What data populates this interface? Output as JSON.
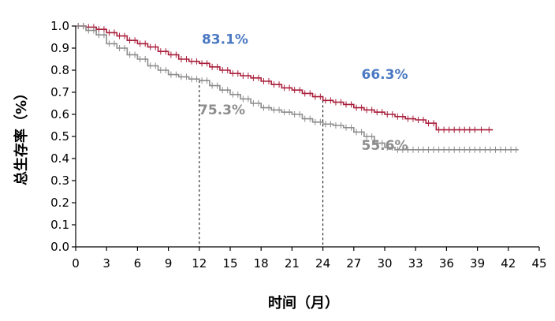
{
  "chart_data": {
    "type": "line",
    "xlabel": "时间（月）",
    "ylabel": "总生存率（%）",
    "xlim": [
      0,
      45
    ],
    "ylim": [
      0,
      1.0
    ],
    "x_ticks": [
      "0",
      "3",
      "6",
      "9",
      "12",
      "15",
      "18",
      "21",
      "24",
      "27",
      "30",
      "33",
      "36",
      "39",
      "42",
      "45"
    ],
    "y_ticks": [
      "0.0",
      "0.1",
      "0.2",
      "0.3",
      "0.4",
      "0.5",
      "0.6",
      "0.7",
      "0.8",
      "0.9",
      "1.0"
    ],
    "grid": false,
    "series": [
      {
        "color": "#a91e3b",
        "x": [
          0,
          1,
          2,
          3,
          4,
          5,
          6,
          7,
          8,
          9,
          10,
          11,
          12,
          13,
          14,
          15,
          16,
          17,
          18,
          19,
          20,
          21,
          22,
          23,
          24,
          25,
          26,
          27,
          28,
          29,
          30,
          31,
          32,
          33,
          34,
          35,
          36,
          37,
          38,
          39,
          40.5
        ],
        "y": [
          1.0,
          0.995,
          0.985,
          0.97,
          0.955,
          0.935,
          0.92,
          0.905,
          0.885,
          0.87,
          0.85,
          0.84,
          0.831,
          0.815,
          0.8,
          0.785,
          0.775,
          0.765,
          0.75,
          0.735,
          0.72,
          0.71,
          0.695,
          0.68,
          0.663,
          0.655,
          0.645,
          0.63,
          0.62,
          0.61,
          0.6,
          0.59,
          0.58,
          0.575,
          0.56,
          0.53,
          0.53,
          0.53,
          0.53,
          0.53,
          0.53
        ]
      },
      {
        "color": "#8c8c8c",
        "x": [
          0,
          1,
          2,
          3,
          4,
          5,
          6,
          7,
          8,
          9,
          10,
          11,
          12,
          13,
          14,
          15,
          16,
          17,
          18,
          19,
          20,
          21,
          22,
          23,
          24,
          25,
          26,
          27,
          28,
          29,
          30,
          31,
          32,
          33,
          34,
          35,
          36,
          37,
          38,
          39,
          40,
          41,
          42,
          43
        ],
        "y": [
          1.0,
          0.98,
          0.96,
          0.92,
          0.9,
          0.87,
          0.85,
          0.82,
          0.8,
          0.78,
          0.77,
          0.76,
          0.753,
          0.73,
          0.71,
          0.69,
          0.67,
          0.65,
          0.63,
          0.62,
          0.61,
          0.6,
          0.58,
          0.565,
          0.556,
          0.55,
          0.54,
          0.52,
          0.5,
          0.47,
          0.45,
          0.44,
          0.44,
          0.44,
          0.44,
          0.44,
          0.44,
          0.44,
          0.44,
          0.44,
          0.44,
          0.44,
          0.44,
          0.44
        ]
      }
    ],
    "reference_lines_x": [
      12,
      24
    ],
    "annotations": [
      {
        "text": "83.1%",
        "x": 14.5,
        "y": 0.92,
        "color": "#4a78c2"
      },
      {
        "text": "66.3%",
        "x": 30,
        "y": 0.76,
        "color": "#4a78c2"
      },
      {
        "text": "75.3%",
        "x": 14.2,
        "y": 0.6,
        "color": "#8c8c8c"
      },
      {
        "text": "55.6%",
        "x": 30,
        "y": 0.44,
        "color": "#8c8c8c"
      }
    ]
  }
}
